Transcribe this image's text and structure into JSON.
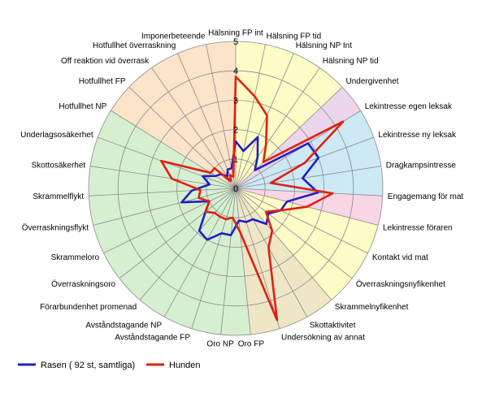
{
  "chart_data": {
    "type": "radar",
    "title": "",
    "rlim": [
      0,
      5
    ],
    "ticks": [
      0,
      1,
      2,
      3,
      4,
      5
    ],
    "grid": true,
    "legend_position": "bottom-left",
    "categories": [
      "Hälsning FP int",
      "Hälsning FP tid",
      "Hälsning NP Int",
      "Hälsning NP tid",
      "Undergivenhet",
      "Lekintresse egen leksak",
      "Lekintresse ny leksak",
      "Dragkampsintresse",
      "Engagemang för mat",
      "Lekintresse föraren",
      "Kontakt vid mat",
      "Överraskningsnyfikenhet",
      "Skrammelnyfikenhet",
      "Skottaktivitet",
      "Undersökning av annat",
      "Oro FP",
      "Oro NP",
      "Avståndstagande FP",
      "Avståndstagande NP",
      "Förarbundenhet promenad",
      "Överraskningsoro",
      "Skrammeloro",
      "Överraskningsflykt",
      "Skrammelflykt",
      "Skottosäkerhet",
      "Underlagsosäkerhet",
      "Hotfullhet NP",
      "Hotfullhet FP",
      "Off reaktion vid överrask",
      "Hotfullhet överraskning",
      "Imponerbeteende"
    ],
    "series": [
      {
        "name": "Rasen ( 92 st, samtliga)",
        "color": "#2020c0",
        "values": [
          1.6,
          1.3,
          1.9,
          1.3,
          0.9,
          2.9,
          3.0,
          2.3,
          2.8,
          1.8,
          1.7,
          1.4,
          1.6,
          1.2,
          1.2,
          1.1,
          1.6,
          1.6,
          2.0,
          1.9,
          1.3,
          1.0,
          1.9,
          1.5,
          0.9,
          1.2,
          0.8,
          0.7,
          0.5,
          0.7,
          0.7
        ]
      },
      {
        "name": "Hunden",
        "color": "#e02010",
        "values": [
          3.8,
          3.2,
          2.7,
          1.8,
          1.3,
          4.3,
          2.5,
          1.2,
          3.3,
          2.5,
          1.7,
          1.3,
          1.9,
          2.3,
          4.7,
          1.5,
          1.0,
          1.1,
          1.1,
          1.1,
          1.3,
          1.0,
          1.3,
          1.2,
          2.2,
          2.7,
          1.0,
          1.0,
          0.3,
          0.5,
          0.4
        ]
      }
    ],
    "sectors": [
      {
        "from": 0,
        "to": 4,
        "color": "#fdfbc6"
      },
      {
        "from": 4,
        "to": 5,
        "color": "#ecd6ec"
      },
      {
        "from": 5,
        "to": 8,
        "color": "#cde9f6"
      },
      {
        "from": 8,
        "to": 9,
        "color": "#f8d6e6"
      },
      {
        "from": 9,
        "to": 12,
        "color": "#fdfbc6"
      },
      {
        "from": 12,
        "to": 15,
        "color": "#efe6c6"
      },
      {
        "from": 15,
        "to": 26,
        "color": "#d6efd0"
      },
      {
        "from": 26,
        "to": 31,
        "color": "#fbe4c8"
      }
    ]
  }
}
